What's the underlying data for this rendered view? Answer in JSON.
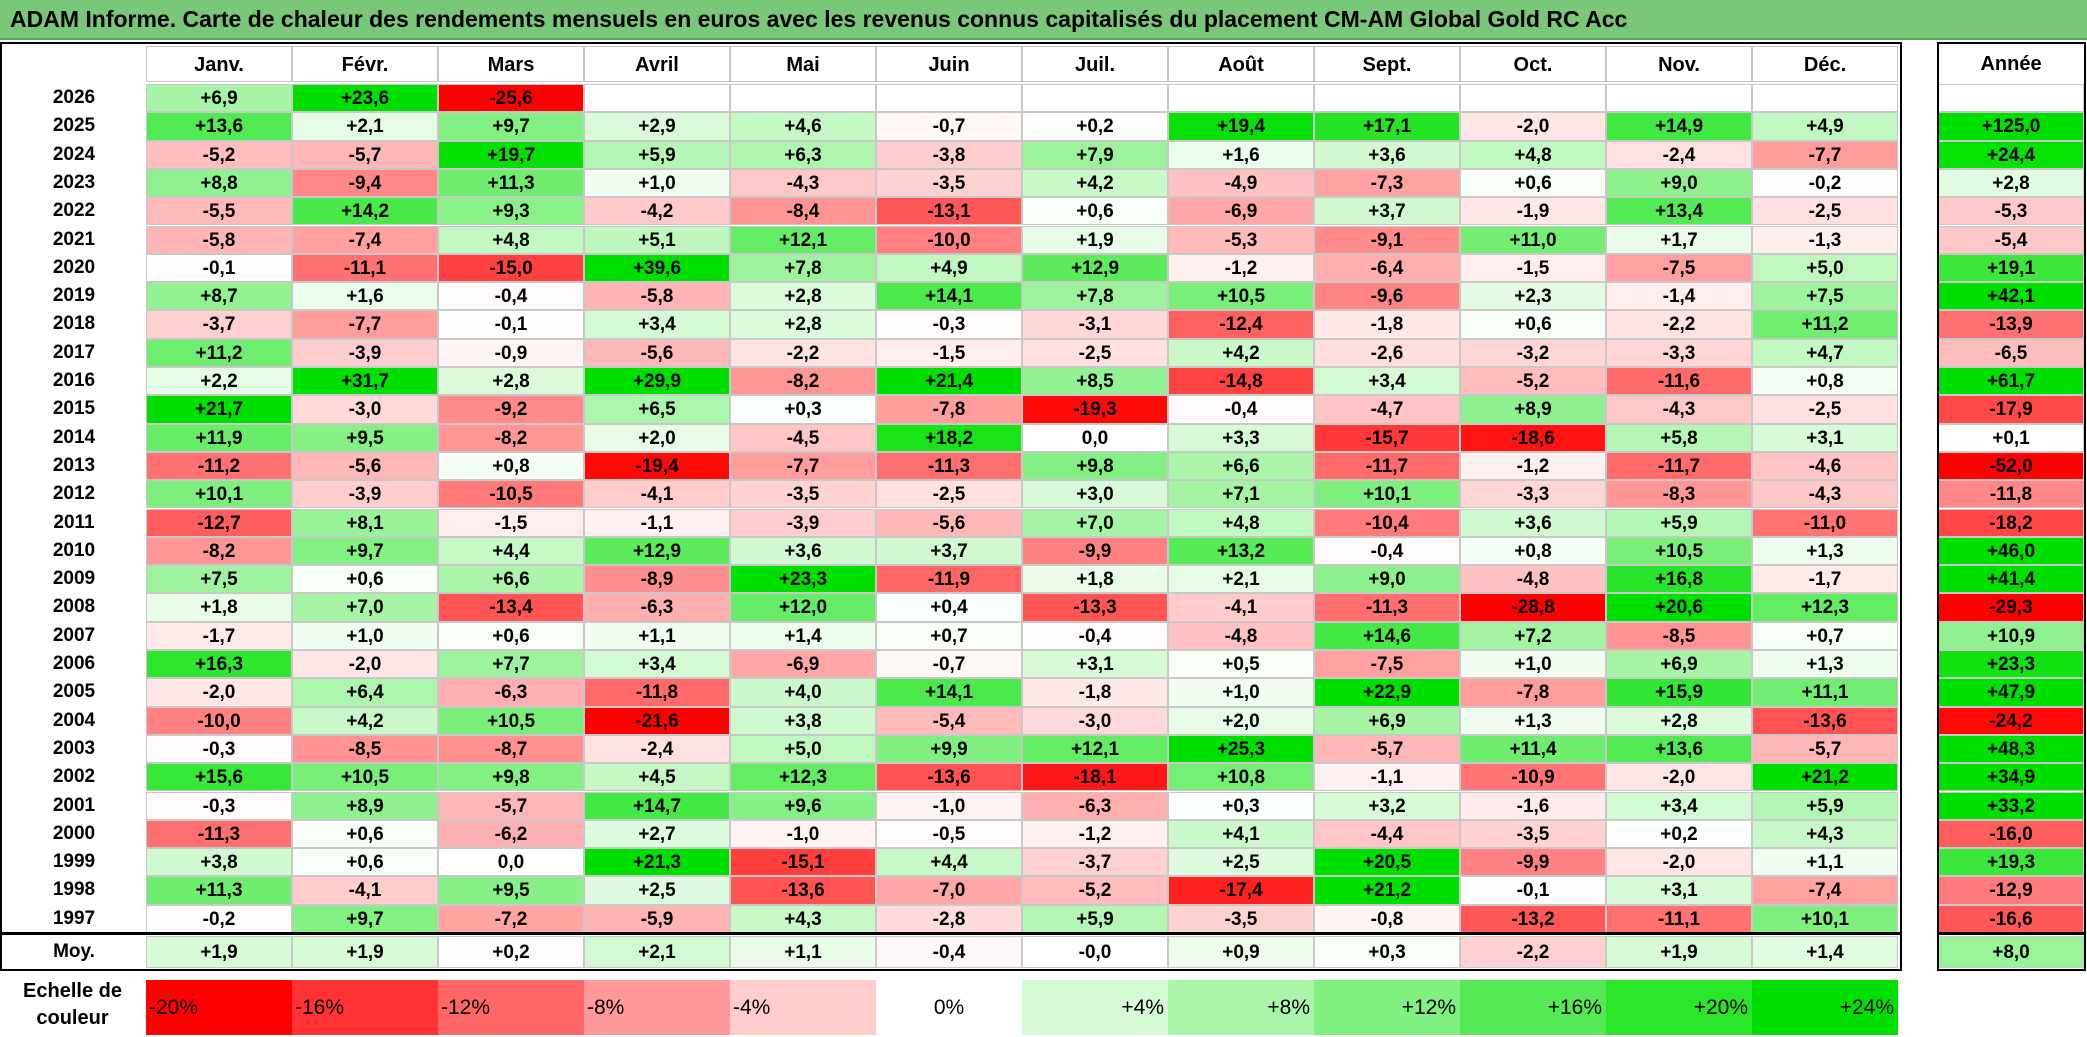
{
  "title": "ADAM Informe. Carte de chaleur des rendements mensuels en euros avec les revenus connus capitalisés du placement CM-AM Global Gold RC Acc",
  "months": [
    "Janv.",
    "Févr.",
    "Mars",
    "Avril",
    "Mai",
    "Juin",
    "Juil.",
    "Août",
    "Sept.",
    "Oct.",
    "Nov.",
    "Déc."
  ],
  "year_header": "Année",
  "avg_label": "Moy.",
  "legend": {
    "label_line1": "Echelle de",
    "label_line2": "couleur",
    "steps": [
      "-20%",
      "-16%",
      "-12%",
      "-8%",
      "-4%",
      "0%",
      "+4%",
      "+8%",
      "+12%",
      "+16%",
      "+20%",
      "+24%"
    ]
  },
  "colors": {
    "max_red": "#ff0000",
    "max_green": "#00e000",
    "neutral": "#ffffff",
    "title_bg": "#79c879"
  },
  "chart_data": {
    "type": "heatmap",
    "title": "ADAM Informe. Carte de chaleur des rendements mensuels en euros avec les revenus connus capitalisés du placement CM-AM Global Gold RC Acc",
    "columns": [
      "Janv.",
      "Févr.",
      "Mars",
      "Avril",
      "Mai",
      "Juin",
      "Juil.",
      "Août",
      "Sept.",
      "Oct.",
      "Nov.",
      "Déc."
    ],
    "rows": [
      {
        "year": "2026",
        "values": [
          "+6,9",
          "+23,6",
          "-25,6",
          "",
          "",
          "",
          "",
          "",
          "",
          "",
          "",
          ""
        ],
        "annual": ""
      },
      {
        "year": "2025",
        "values": [
          "+13,6",
          "+2,1",
          "+9,7",
          "+2,9",
          "+4,6",
          "-0,7",
          "+0,2",
          "+19,4",
          "+17,1",
          "-2,0",
          "+14,9",
          "+4,9"
        ],
        "annual": "+125,0"
      },
      {
        "year": "2024",
        "values": [
          "-5,2",
          "-5,7",
          "+19,7",
          "+5,9",
          "+6,3",
          "-3,8",
          "+7,9",
          "+1,6",
          "+3,6",
          "+4,8",
          "-2,4",
          "-7,7"
        ],
        "annual": "+24,4"
      },
      {
        "year": "2023",
        "values": [
          "+8,8",
          "-9,4",
          "+11,3",
          "+1,0",
          "-4,3",
          "-3,5",
          "+4,2",
          "-4,9",
          "-7,3",
          "+0,6",
          "+9,0",
          "-0,2"
        ],
        "annual": "+2,8"
      },
      {
        "year": "2022",
        "values": [
          "-5,5",
          "+14,2",
          "+9,3",
          "-4,2",
          "-8,4",
          "-13,1",
          "+0,6",
          "-6,9",
          "+3,7",
          "-1,9",
          "+13,4",
          "-2,5"
        ],
        "annual": "-5,3"
      },
      {
        "year": "2021",
        "values": [
          "-5,8",
          "-7,4",
          "+4,8",
          "+5,1",
          "+12,1",
          "-10,0",
          "+1,9",
          "-5,3",
          "-9,1",
          "+11,0",
          "+1,7",
          "-1,3"
        ],
        "annual": "-5,4"
      },
      {
        "year": "2020",
        "values": [
          "-0,1",
          "-11,1",
          "-15,0",
          "+39,6",
          "+7,8",
          "+4,9",
          "+12,9",
          "-1,2",
          "-6,4",
          "-1,5",
          "-7,5",
          "+5,0"
        ],
        "annual": "+19,1"
      },
      {
        "year": "2019",
        "values": [
          "+8,7",
          "+1,6",
          "-0,4",
          "-5,8",
          "+2,8",
          "+14,1",
          "+7,8",
          "+10,5",
          "-9,6",
          "+2,3",
          "-1,4",
          "+7,5"
        ],
        "annual": "+42,1"
      },
      {
        "year": "2018",
        "values": [
          "-3,7",
          "-7,7",
          "-0,1",
          "+3,4",
          "+2,8",
          "-0,3",
          "-3,1",
          "-12,4",
          "-1,8",
          "+0,6",
          "-2,2",
          "+11,2"
        ],
        "annual": "-13,9"
      },
      {
        "year": "2017",
        "values": [
          "+11,2",
          "-3,9",
          "-0,9",
          "-5,6",
          "-2,2",
          "-1,5",
          "-2,5",
          "+4,2",
          "-2,6",
          "-3,2",
          "-3,3",
          "+4,7"
        ],
        "annual": "-6,5"
      },
      {
        "year": "2016",
        "values": [
          "+2,2",
          "+31,7",
          "+2,8",
          "+29,9",
          "-8,2",
          "+21,4",
          "+8,5",
          "-14,8",
          "+3,4",
          "-5,2",
          "-11,6",
          "+0,8"
        ],
        "annual": "+61,7"
      },
      {
        "year": "2015",
        "values": [
          "+21,7",
          "-3,0",
          "-9,2",
          "+6,5",
          "+0,3",
          "-7,8",
          "-19,3",
          "-0,4",
          "-4,7",
          "+8,9",
          "-4,3",
          "-2,5"
        ],
        "annual": "-17,9"
      },
      {
        "year": "2014",
        "values": [
          "+11,9",
          "+9,5",
          "-8,2",
          "+2,0",
          "-4,5",
          "+18,2",
          "0,0",
          "+3,3",
          "-15,7",
          "-18,6",
          "+5,8",
          "+3,1"
        ],
        "annual": "+0,1"
      },
      {
        "year": "2013",
        "values": [
          "-11,2",
          "-5,6",
          "+0,8",
          "-19,4",
          "-7,7",
          "-11,3",
          "+9,8",
          "+6,6",
          "-11,7",
          "-1,2",
          "-11,7",
          "-4,6"
        ],
        "annual": "-52,0"
      },
      {
        "year": "2012",
        "values": [
          "+10,1",
          "-3,9",
          "-10,5",
          "-4,1",
          "-3,5",
          "-2,5",
          "+3,0",
          "+7,1",
          "+10,1",
          "-3,3",
          "-8,3",
          "-4,3"
        ],
        "annual": "-11,8"
      },
      {
        "year": "2011",
        "values": [
          "-12,7",
          "+8,1",
          "-1,5",
          "-1,1",
          "-3,9",
          "-5,6",
          "+7,0",
          "+4,8",
          "-10,4",
          "+3,6",
          "+5,9",
          "-11,0"
        ],
        "annual": "-18,2"
      },
      {
        "year": "2010",
        "values": [
          "-8,2",
          "+9,7",
          "+4,4",
          "+12,9",
          "+3,6",
          "+3,7",
          "-9,9",
          "+13,2",
          "-0,4",
          "+0,8",
          "+10,5",
          "+1,3"
        ],
        "annual": "+46,0"
      },
      {
        "year": "2009",
        "values": [
          "+7,5",
          "+0,6",
          "+6,6",
          "-8,9",
          "+23,3",
          "-11,9",
          "+1,8",
          "+2,1",
          "+9,0",
          "-4,8",
          "+16,8",
          "-1,7"
        ],
        "annual": "+41,4"
      },
      {
        "year": "2008",
        "values": [
          "+1,8",
          "+7,0",
          "-13,4",
          "-6,3",
          "+12,0",
          "+0,4",
          "-13,3",
          "-4,1",
          "-11,3",
          "-28,8",
          "+20,6",
          "+12,3"
        ],
        "annual": "-29,3"
      },
      {
        "year": "2007",
        "values": [
          "-1,7",
          "+1,0",
          "+0,6",
          "+1,1",
          "+1,4",
          "+0,7",
          "-0,4",
          "-4,8",
          "+14,6",
          "+7,2",
          "-8,5",
          "+0,7"
        ],
        "annual": "+10,9"
      },
      {
        "year": "2006",
        "values": [
          "+16,3",
          "-2,0",
          "+7,7",
          "+3,4",
          "-6,9",
          "-0,7",
          "+3,1",
          "+0,5",
          "-7,5",
          "+1,0",
          "+6,9",
          "+1,3"
        ],
        "annual": "+23,3"
      },
      {
        "year": "2005",
        "values": [
          "-2,0",
          "+6,4",
          "-6,3",
          "-11,8",
          "+4,0",
          "+14,1",
          "-1,8",
          "+1,0",
          "+22,9",
          "-7,8",
          "+15,9",
          "+11,1"
        ],
        "annual": "+47,9"
      },
      {
        "year": "2004",
        "values": [
          "-10,0",
          "+4,2",
          "+10,5",
          "-21,6",
          "+3,8",
          "-5,4",
          "-3,0",
          "+2,0",
          "+6,9",
          "+1,3",
          "+2,8",
          "-13,6"
        ],
        "annual": "-24,2"
      },
      {
        "year": "2003",
        "values": [
          "-0,3",
          "-8,5",
          "-8,7",
          "-2,4",
          "+5,0",
          "+9,9",
          "+12,1",
          "+25,3",
          "-5,7",
          "+11,4",
          "+13,6",
          "-5,7"
        ],
        "annual": "+48,3"
      },
      {
        "year": "2002",
        "values": [
          "+15,6",
          "+10,5",
          "+9,8",
          "+4,5",
          "+12,3",
          "-13,6",
          "-18,1",
          "+10,8",
          "-1,1",
          "-10,9",
          "-2,0",
          "+21,2"
        ],
        "annual": "+34,9"
      },
      {
        "year": "2001",
        "values": [
          "-0,3",
          "+8,9",
          "-5,7",
          "+14,7",
          "+9,6",
          "-1,0",
          "-6,3",
          "+0,3",
          "+3,2",
          "-1,6",
          "+3,4",
          "+5,9"
        ],
        "annual": "+33,2"
      },
      {
        "year": "2000",
        "values": [
          "-11,3",
          "+0,6",
          "-6,2",
          "+2,7",
          "-1,0",
          "-0,5",
          "-1,2",
          "+4,1",
          "-4,4",
          "-3,5",
          "+0,2",
          "+4,3"
        ],
        "annual": "-16,0"
      },
      {
        "year": "1999",
        "values": [
          "+3,8",
          "+0,6",
          "0,0",
          "+21,3",
          "-15,1",
          "+4,4",
          "-3,7",
          "+2,5",
          "+20,5",
          "-9,9",
          "-2,0",
          "+1,1"
        ],
        "annual": "+19,3"
      },
      {
        "year": "1998",
        "values": [
          "+11,3",
          "-4,1",
          "+9,5",
          "+2,5",
          "-13,6",
          "-7,0",
          "-5,2",
          "-17,4",
          "+21,2",
          "-0,1",
          "+3,1",
          "-7,4"
        ],
        "annual": "-12,9"
      },
      {
        "year": "1997",
        "values": [
          "-0,2",
          "+9,7",
          "-7,2",
          "-5,9",
          "+4,3",
          "-2,8",
          "+5,9",
          "-3,5",
          "-0,8",
          "-13,2",
          "-11,1",
          "+10,1"
        ],
        "annual": "-16,6"
      }
    ],
    "averages": [
      "+1,9",
      "+1,9",
      "+0,2",
      "+2,1",
      "+1,1",
      "-0,4",
      "-0,0",
      "+0,9",
      "+0,3",
      "-2,2",
      "+1,9",
      "+1,4"
    ],
    "average_annual": "+8,0",
    "color_scale": {
      "min": -20,
      "max": 24,
      "unit": "%"
    }
  }
}
